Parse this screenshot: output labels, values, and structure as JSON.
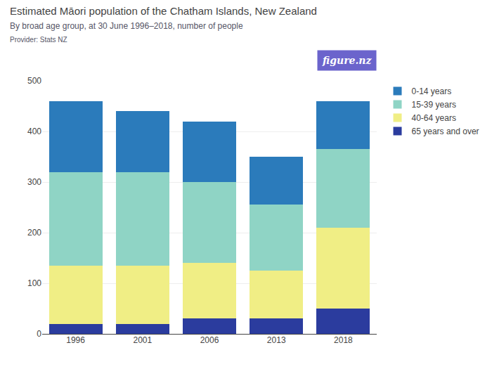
{
  "chart_data": {
    "type": "bar",
    "stacked": true,
    "title": "Estimated Māori population of the Chatham Islands, New Zealand",
    "subtitle": "By broad age group, at 30 June 1996–2018, number of people",
    "annotations": [
      {
        "text": "Provider: Stats NZ"
      },
      {
        "text": "figure.nz",
        "color": "#6b64cc"
      }
    ],
    "categories": [
      "1996",
      "2001",
      "2006",
      "2013",
      "2018"
    ],
    "series": [
      {
        "name": "65 years and over",
        "color": "#2b3c9e",
        "values": [
          20,
          20,
          30,
          30,
          50
        ]
      },
      {
        "name": "40-64 years",
        "color": "#f0ee85",
        "values": [
          115,
          115,
          110,
          95,
          160
        ]
      },
      {
        "name": "15-39 years",
        "color": "#8fd4c5",
        "values": [
          185,
          185,
          160,
          130,
          155
        ]
      },
      {
        "name": "0-14 years",
        "color": "#2b7bbb",
        "values": [
          140,
          120,
          120,
          95,
          95
        ]
      }
    ],
    "ylim": [
      0,
      500
    ],
    "yticks": [
      0,
      100,
      200,
      300,
      400,
      500
    ],
    "grid": true,
    "legend": "upper right"
  }
}
